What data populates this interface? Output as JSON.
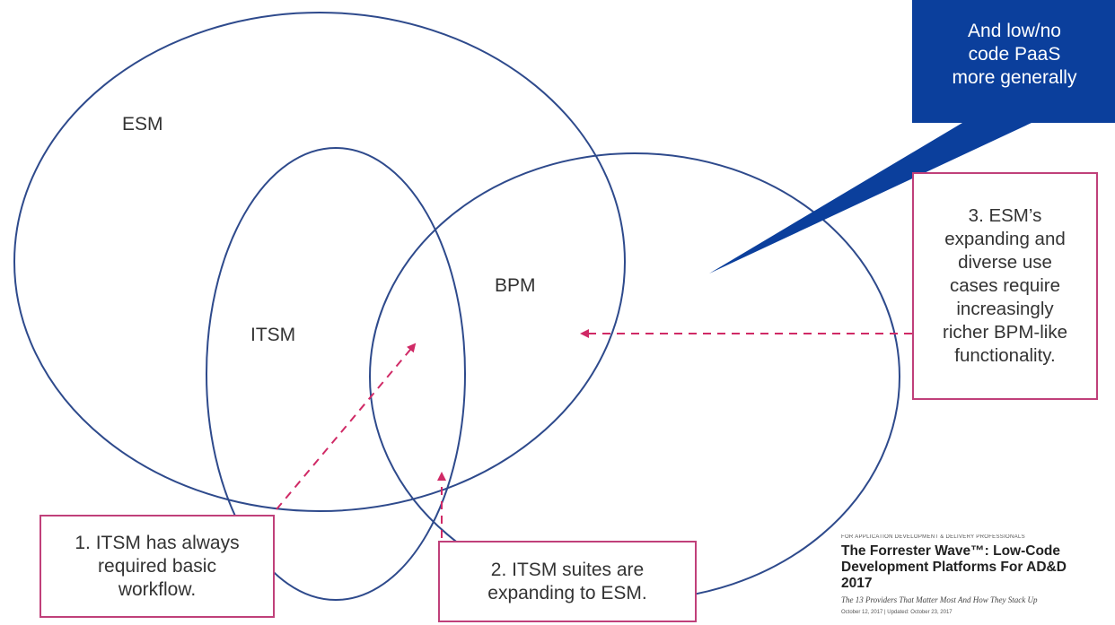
{
  "colors": {
    "circle": "#2e4a8c",
    "callout_border": "#c0407a",
    "arrow": "#d02a66",
    "bubble": "#0b3f9c"
  },
  "labels": {
    "esm": "ESM",
    "itsm": "ITSM",
    "bpm": "BPM"
  },
  "callouts": {
    "itsm_workflow": [
      "1. ITSM has always",
      "required basic",
      "workflow."
    ],
    "itsm_suites": [
      "2. ITSM suites are",
      "expanding to ESM."
    ],
    "esm_use_cases": [
      "3. ESM’s",
      "expanding and",
      "diverse use",
      "cases require",
      "increasingly",
      "richer BPM-like",
      "functionality."
    ]
  },
  "speech_bubble": [
    "And low/no",
    "code PaaS",
    "more generally"
  ],
  "forrester_report": {
    "category": "FOR APPLICATION DEVELOPMENT & DELIVERY PROFESSIONALS",
    "title_line1": "The Forrester Wave™: Low-Code",
    "title_line2": "Development Platforms For AD&D",
    "title_line3": "2017",
    "subtitle": "The 13 Providers That Matter Most And How They Stack Up",
    "date": "October 12, 2017 | Updated: October 23, 2017"
  }
}
